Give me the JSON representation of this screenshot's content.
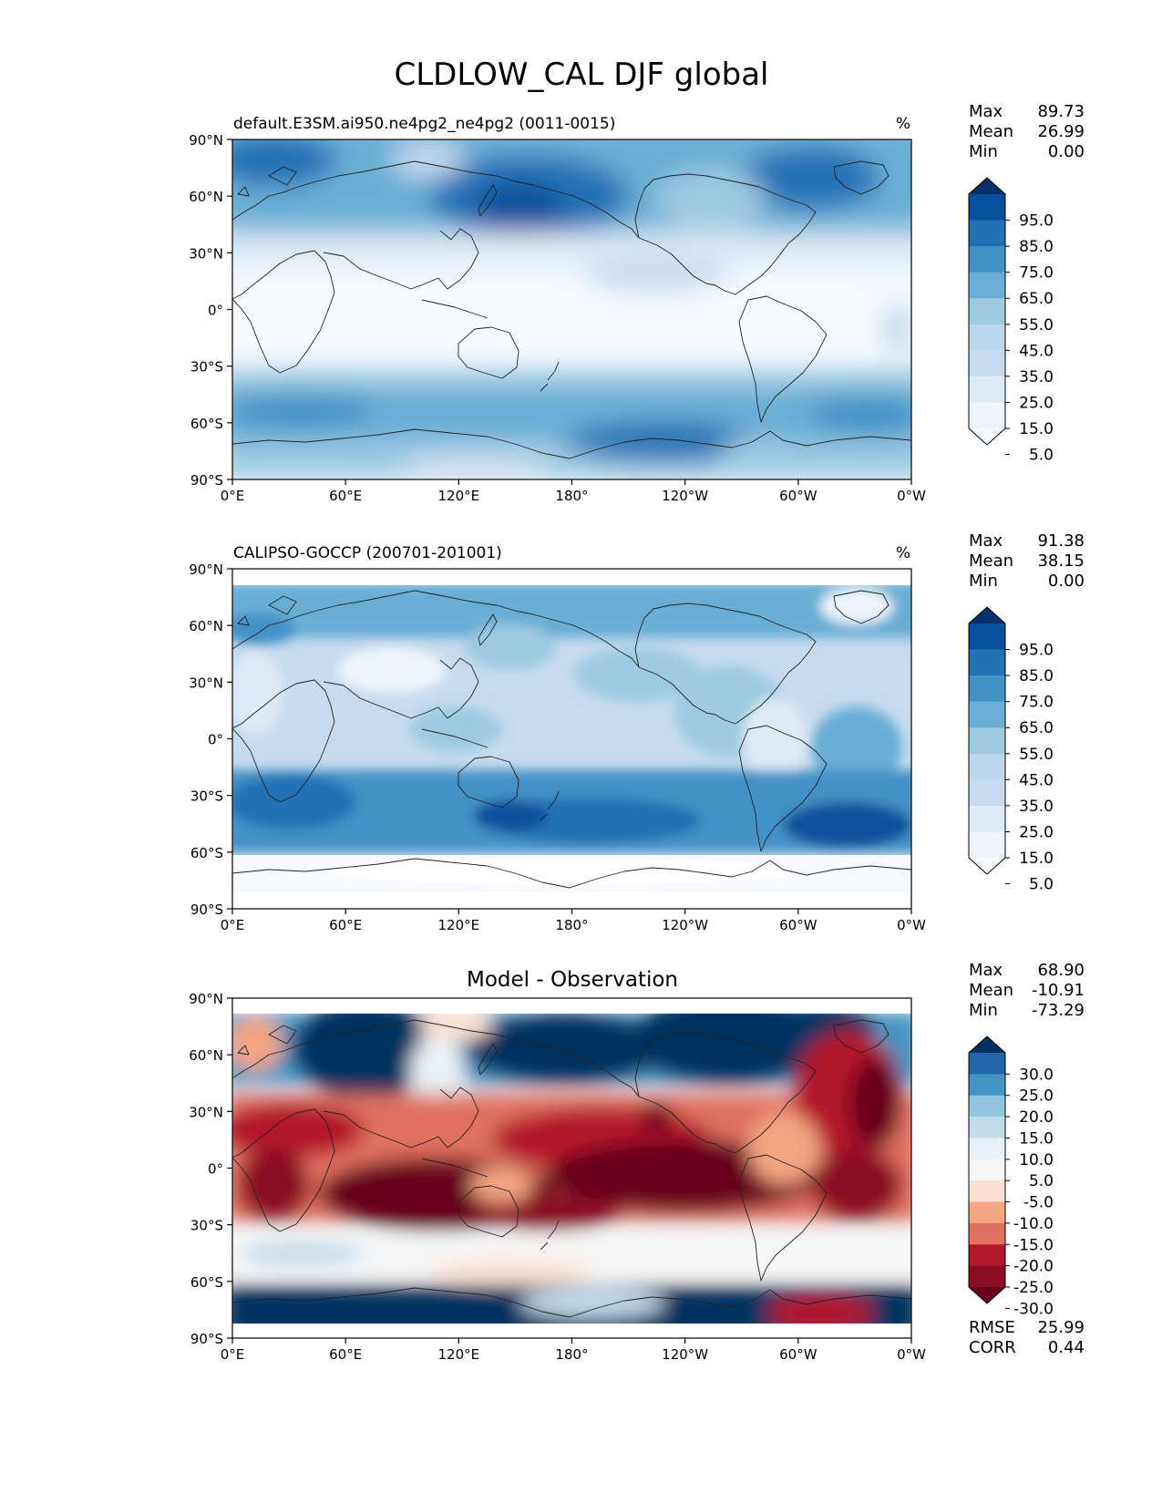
{
  "title": "CLDLOW_CAL DJF global",
  "lat_ticks": [
    "90°N",
    "60°N",
    "30°N",
    "0°",
    "30°S",
    "60°S",
    "90°S"
  ],
  "lon_ticks": [
    "0°E",
    "60°E",
    "120°E",
    "180°",
    "120°W",
    "60°W",
    "0°W"
  ],
  "panels": [
    {
      "left_title": "default.E3SM.ai950.ne4pg2_ne4pg2 (0011-0015)",
      "center_title": "",
      "units": "%",
      "stats": [
        [
          "Max",
          "89.73"
        ],
        [
          "Mean",
          "26.99"
        ],
        [
          "Min",
          "0.00"
        ]
      ],
      "colorbar": {
        "labels": [
          "95.0",
          "85.0",
          "75.0",
          "65.0",
          "55.0",
          "45.0",
          "35.0",
          "25.0",
          "15.0",
          "5.0"
        ],
        "colors": [
          "#08306b",
          "#08519c",
          "#2171b5",
          "#4292c6",
          "#6baed6",
          "#9ecae1",
          "#bcd7ec",
          "#c6dbef",
          "#deebf7",
          "#eef5fc",
          "#f7fbff"
        ]
      },
      "extra_stats": []
    },
    {
      "left_title": "CALIPSO-GOCCP (200701-201001)",
      "center_title": "",
      "units": "%",
      "stats": [
        [
          "Max",
          "91.38"
        ],
        [
          "Mean",
          "38.15"
        ],
        [
          "Min",
          "0.00"
        ]
      ],
      "colorbar": {
        "labels": [
          "95.0",
          "85.0",
          "75.0",
          "65.0",
          "55.0",
          "45.0",
          "35.0",
          "25.0",
          "15.0",
          "5.0"
        ],
        "colors": [
          "#08306b",
          "#08519c",
          "#2171b5",
          "#4292c6",
          "#6baed6",
          "#9ecae1",
          "#bcd7ec",
          "#c6dbef",
          "#deebf7",
          "#eef5fc",
          "#f7fbff"
        ]
      },
      "extra_stats": []
    },
    {
      "left_title": "",
      "center_title": "Model - Observation",
      "units": "",
      "stats": [
        [
          "Max",
          "68.90"
        ],
        [
          "Mean",
          "-10.91"
        ],
        [
          "Min",
          "-73.29"
        ]
      ],
      "colorbar": {
        "labels": [
          "30.0",
          "25.0",
          "20.0",
          "15.0",
          "10.0",
          "5.0",
          "-5.0",
          "-10.0",
          "-15.0",
          "-20.0",
          "-25.0",
          "-30.0"
        ],
        "colors": [
          "#053061",
          "#2166ac",
          "#4393c3",
          "#92c5de",
          "#c2dcec",
          "#e8f1f7",
          "#f7f7f7",
          "#fbe0d2",
          "#f4a582",
          "#e07160",
          "#b2182b",
          "#8b0d22",
          "#67001f"
        ]
      },
      "extra_stats": [
        [
          "RMSE",
          "25.99"
        ],
        [
          "CORR",
          "0.44"
        ]
      ]
    }
  ]
}
